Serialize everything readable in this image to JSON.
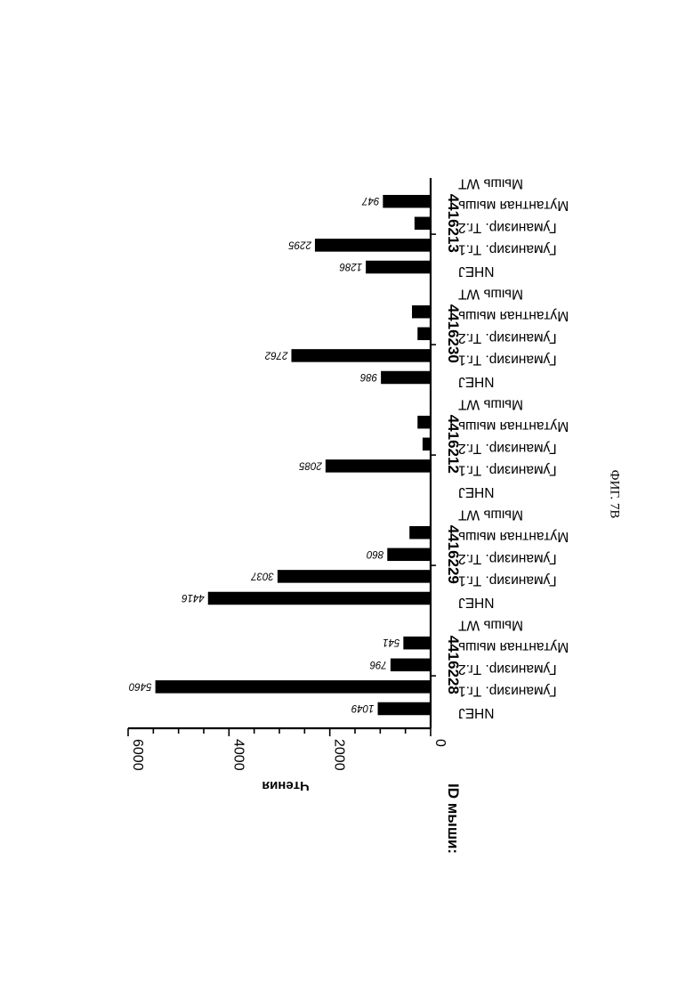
{
  "chart_data": {
    "type": "bar",
    "orientation": "rotated-180-horizontal",
    "ylabel": "Чтения",
    "ylim": [
      0,
      6000
    ],
    "yticks": [
      0,
      2000,
      4000,
      6000
    ],
    "id_row_label": "ID мыши:",
    "category_labels": [
      "NHEJ",
      "Гуманизир. Тг.1",
      "Гуманизир. Тг.2",
      "Мутантная мышь",
      "Мышь WT"
    ],
    "groups": [
      {
        "id": "4416228",
        "values": [
          1049,
          5460,
          796,
          541,
          0
        ],
        "labels": [
          "1049",
          "5460",
          "796",
          "541",
          null
        ]
      },
      {
        "id": "4416229",
        "values": [
          4416,
          3037,
          860,
          420,
          0
        ],
        "labels": [
          "4416",
          "3037",
          "860",
          null,
          null
        ]
      },
      {
        "id": "4416212",
        "values": [
          0,
          2085,
          160,
          260,
          0
        ],
        "labels": [
          null,
          "2085",
          null,
          null,
          null
        ]
      },
      {
        "id": "4416230",
        "values": [
          986,
          2762,
          260,
          370,
          0
        ],
        "labels": [
          "986",
          "2762",
          null,
          null,
          null
        ]
      },
      {
        "id": "4416213",
        "values": [
          1286,
          2295,
          320,
          947,
          0
        ],
        "labels": [
          "1286",
          "2295",
          null,
          "947",
          null
        ]
      }
    ]
  },
  "figure_caption": "ФИГ. 7В"
}
